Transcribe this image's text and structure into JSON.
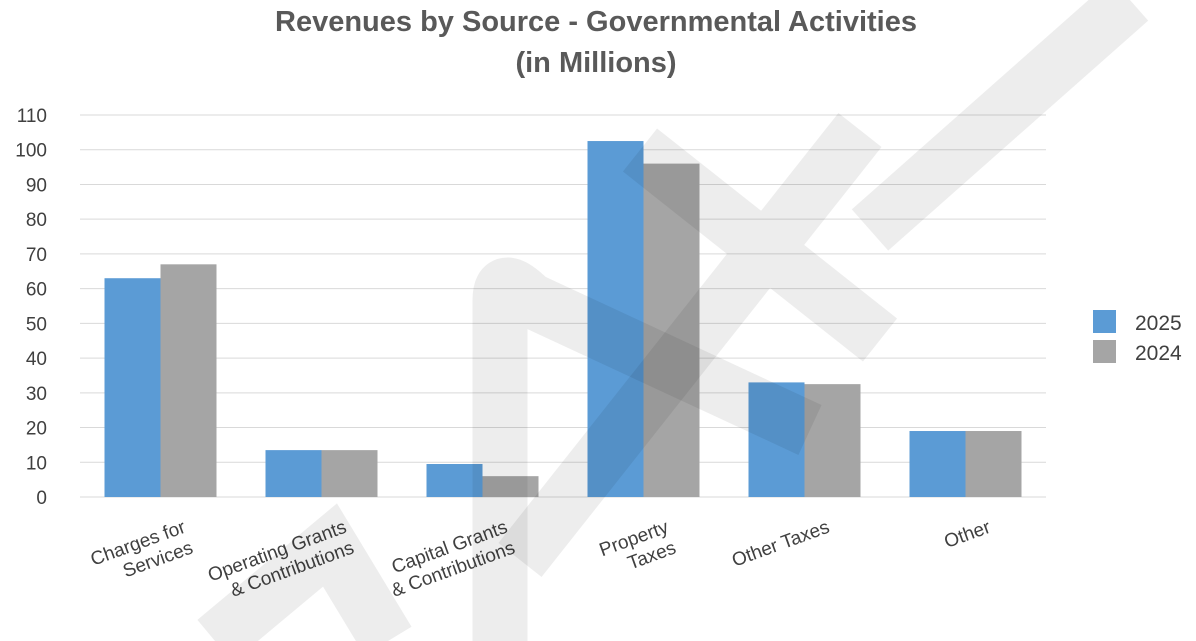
{
  "chart_data": {
    "type": "bar",
    "title": "Revenues by Source - Governmental Activities",
    "subtitle": "(in Millions)",
    "xlabel": "",
    "ylabel": "",
    "ylim": [
      0,
      110
    ],
    "yticks": [
      0,
      10,
      20,
      30,
      40,
      50,
      60,
      70,
      80,
      90,
      100,
      110
    ],
    "grid": true,
    "legend_position": "right",
    "categories": [
      [
        "Charges for",
        "Services"
      ],
      [
        "Operating Grants",
        "& Contributions"
      ],
      [
        "Capital Grants",
        "& Contributions"
      ],
      [
        "Property",
        "Taxes"
      ],
      [
        "Other Taxes"
      ],
      [
        "Other"
      ]
    ],
    "series": [
      {
        "name": "2025",
        "color": "#5b9bd5",
        "values": [
          63,
          13.5,
          9.5,
          102.5,
          33,
          19
        ]
      },
      {
        "name": "2024",
        "color": "#a5a5a5",
        "values": [
          67,
          13.5,
          6,
          96,
          32.5,
          19
        ]
      }
    ]
  }
}
